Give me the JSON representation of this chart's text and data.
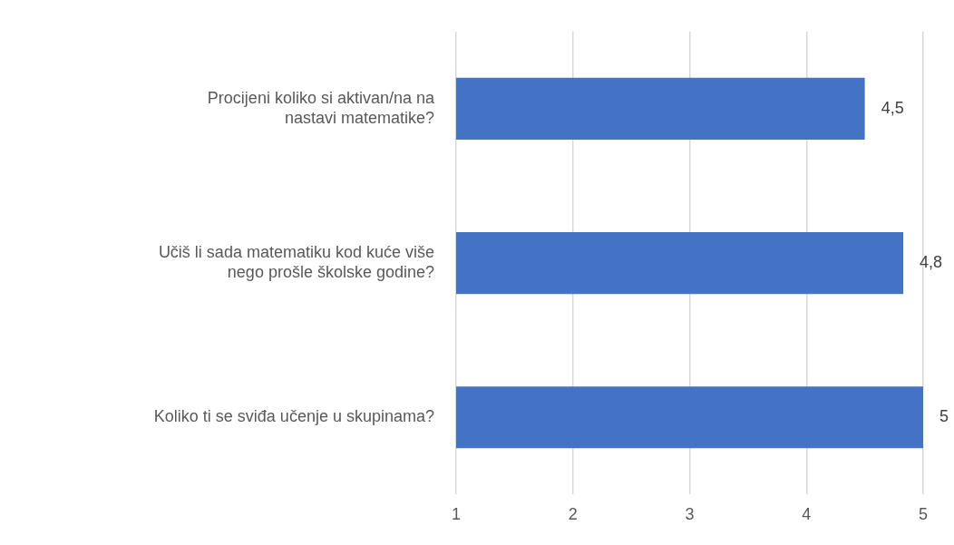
{
  "chart_data": {
    "type": "bar",
    "orientation": "horizontal",
    "categories": [
      "Procijeni koliko si aktivan/na na nastavi matematike?",
      "Učiš li sada matematiku kod kuće više nego prošle školske godine?",
      "Koliko ti se sviđa učenje u skupinama?"
    ],
    "values": [
      4.5,
      4.83,
      5
    ],
    "value_labels": [
      "4,5",
      "4,8",
      "5"
    ],
    "color": "#4472c4",
    "xlim": [
      1,
      5
    ],
    "xticks": [
      1,
      2,
      3,
      4,
      5
    ],
    "grid": "x"
  }
}
